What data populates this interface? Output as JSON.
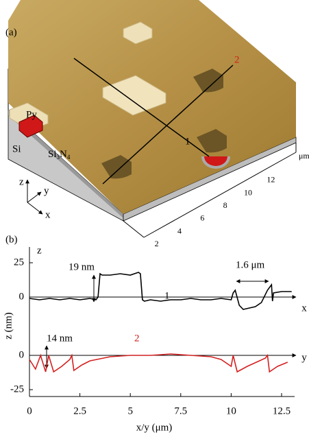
{
  "panel_a": {
    "panel_label": "(a)",
    "line_labels": [
      "1",
      "2"
    ],
    "py": "Py",
    "si": "Si",
    "si3n4": [
      "Si",
      "3",
      "N",
      "4"
    ],
    "axes": [
      "z",
      "y",
      "x"
    ],
    "unit": "μm",
    "scale_ticks": [
      2,
      4,
      6,
      8,
      10,
      12
    ]
  },
  "chart_data": [
    {
      "type": "line",
      "panel_label": "(b)",
      "axis_top_label": "z",
      "ylabel": "z (nm)",
      "axis_end_label": "x",
      "xlim": [
        0,
        13
      ],
      "ylim": [
        -21,
        31.5
      ],
      "yticks": [
        0,
        25
      ],
      "annotations": [
        "19 nm",
        "1.6 μm"
      ],
      "series": [
        {
          "name": "1",
          "color": "#000000",
          "x": [
            0,
            0.5,
            1,
            1.5,
            2,
            2.5,
            3,
            3.3,
            3.4,
            3.5,
            3.6,
            4,
            4.5,
            5,
            5.4,
            5.5,
            5.6,
            5.7,
            6,
            6.5,
            7,
            7.5,
            8,
            8.5,
            9,
            9.5,
            10,
            10.1,
            10.2,
            10.4,
            10.6,
            10.9,
            11.2,
            11.5,
            11.8,
            12,
            12.05,
            12.1,
            12.5,
            13
          ],
          "values": [
            -1,
            -2,
            -1,
            -2,
            -1,
            -2,
            -1,
            -2,
            0,
            17,
            16,
            16,
            17,
            16,
            18,
            17,
            -2,
            -3,
            -2,
            -3,
            -2,
            -2,
            -1,
            -2,
            -2,
            -1,
            -2,
            3,
            5,
            -6,
            -9,
            -8,
            -7,
            -4,
            5,
            9,
            -3,
            3,
            4,
            4
          ]
        }
      ]
    },
    {
      "type": "line",
      "axis_end_label": "y",
      "xlabel": "x/y (μm)",
      "xlim": [
        0,
        13
      ],
      "xticks": [
        0,
        2.5,
        5,
        7.5,
        10,
        12.5
      ],
      "ylim": [
        -30,
        21.5
      ],
      "yticks": [
        -25,
        0
      ],
      "annotations": [
        "14 nm"
      ],
      "series": [
        {
          "name": "2",
          "color": "#d42020",
          "x": [
            0,
            0.3,
            0.55,
            0.8,
            0.95,
            1.2,
            1.6,
            2,
            2.1,
            2.2,
            2.6,
            3,
            4,
            5,
            6,
            7,
            8,
            9,
            9.5,
            10,
            10.1,
            10.3,
            10.8,
            11.4,
            11.7,
            11.8,
            11.9,
            12.3,
            12.8
          ],
          "values": [
            -3,
            -10,
            0,
            -12,
            0,
            -12,
            -8,
            -3,
            0,
            -11,
            -7,
            -4,
            -1,
            0,
            0,
            1,
            0,
            -1,
            -3,
            -8,
            0,
            -12,
            -8,
            -4,
            -2,
            0,
            -12,
            -8,
            -5
          ]
        }
      ]
    }
  ]
}
